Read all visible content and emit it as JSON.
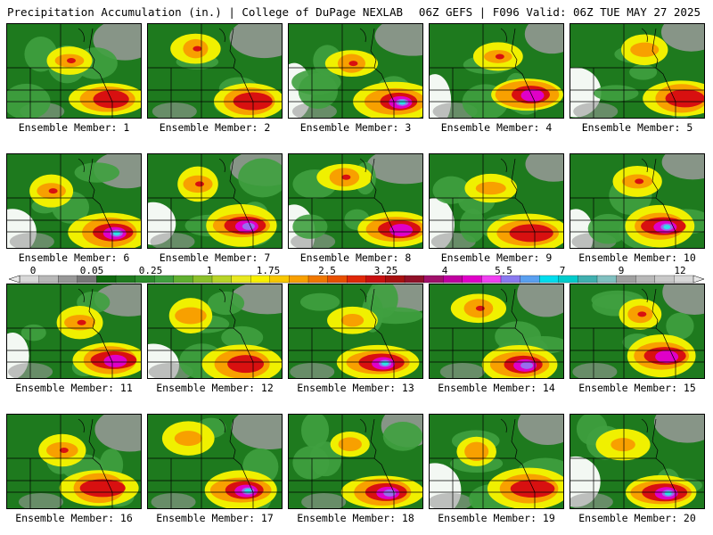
{
  "header": {
    "left": "Precipitation Accumulation (in.) | College of DuPage NEXLAB",
    "right": "06Z GEFS | F096 Valid: 06Z TUE MAY 27 2025"
  },
  "panel_label_prefix": "Ensemble Member:",
  "members": [
    "1",
    "2",
    "3",
    "4",
    "5",
    "6",
    "7",
    "8",
    "9",
    "10",
    "11",
    "12",
    "13",
    "14",
    "15",
    "16",
    "17",
    "18",
    "19",
    "20"
  ],
  "colorbar": {
    "tick_labels": [
      "0",
      "0.05",
      "0.25",
      "1",
      "1.75",
      "2.5",
      "3.25",
      "4",
      "5.5",
      "7",
      "9",
      "12"
    ],
    "colors": [
      "#d8d8d8",
      "#b8b8b8",
      "#989898",
      "#787878",
      "#0f6a0f",
      "#1e7a1e",
      "#2d8c2d",
      "#3fa03f",
      "#60b030",
      "#8cc02a",
      "#b8d428",
      "#e8e820",
      "#f8f000",
      "#f8c800",
      "#f8a000",
      "#f07800",
      "#e85000",
      "#e02808",
      "#c81010",
      "#a81010",
      "#901028",
      "#a0106a",
      "#c000a0",
      "#e000c8",
      "#f040f0",
      "#8a7af0",
      "#5aa0f0",
      "#00ddee",
      "#00cccc",
      "#40b0b0",
      "#80c0c0",
      "#a0a0a0",
      "#b8b8b8",
      "#c8c8c8",
      "#d8d8d8"
    ]
  },
  "palette": {
    "green_dark": "#1e7a1e",
    "green_light": "#3fa03f",
    "yellow": "#f0f000",
    "orange": "#f8a000",
    "red": "#d81010",
    "magenta": "#e000c8",
    "purple": "#9a6cf0",
    "cyan": "#30e0e8",
    "gray": "#9a9a9a",
    "white": "#ffffff"
  }
}
